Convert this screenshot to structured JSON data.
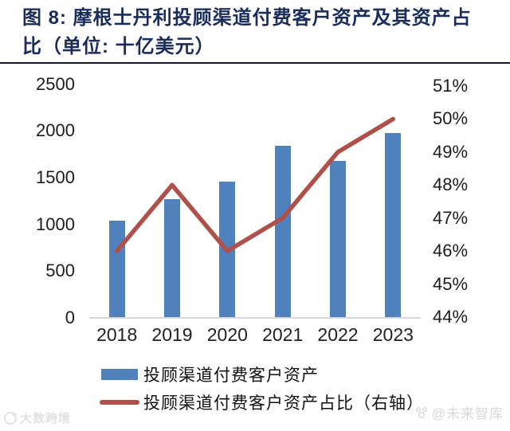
{
  "title": {
    "line1": "图 8: 摩根士丹利投顾渠道付费客户资产及其资产占",
    "line2": "比（单位: 十亿美元）"
  },
  "chart_data": {
    "type": "bar",
    "combo": "bar+line",
    "title": "摩根士丹利投顾渠道付费客户资产及其资产占比（单位: 十亿美元）",
    "categories": [
      "2018",
      "2019",
      "2020",
      "2021",
      "2022",
      "2023"
    ],
    "series": [
      {
        "name": "投顾渠道付费客户资产",
        "type": "bar",
        "axis": "left",
        "color": "#4f81bd",
        "values": [
          1040,
          1270,
          1460,
          1840,
          1680,
          1980
        ]
      },
      {
        "name": "投顾渠道付费客户资产占比（右轴）",
        "type": "line",
        "axis": "right",
        "color": "#b0504a",
        "unit": "%",
        "values": [
          46,
          48,
          46,
          47,
          49,
          50
        ]
      }
    ],
    "left_axis": {
      "min": 0,
      "max": 2500,
      "step": 500,
      "ticks": [
        "2500",
        "2000",
        "1500",
        "1000",
        "500",
        "0"
      ]
    },
    "right_axis": {
      "min": 44,
      "max": 51,
      "step": 1,
      "ticks": [
        "51%",
        "50%",
        "49%",
        "48%",
        "47%",
        "46%",
        "45%",
        "44%"
      ]
    },
    "grid": false,
    "legend_position": "bottom-left"
  },
  "legend": {
    "items": [
      {
        "label": "投顾渠道付费客户资产",
        "swatch": "bar",
        "color": "#4f81bd"
      },
      {
        "label": "投顾渠道付费客户资产占比（右轴）",
        "swatch": "line",
        "color": "#b0504a"
      }
    ]
  },
  "watermarks": {
    "bottom_left": "大数跨境",
    "bottom_right": "@未来智库"
  },
  "colors": {
    "title": "#1a2d5a",
    "bar": "#4f81bd",
    "line": "#b0504a",
    "axis_text": "#1c1c1c",
    "baseline": "#d8d8d8",
    "title_rule": "#15152a",
    "watermark": "#dcdcdc"
  }
}
